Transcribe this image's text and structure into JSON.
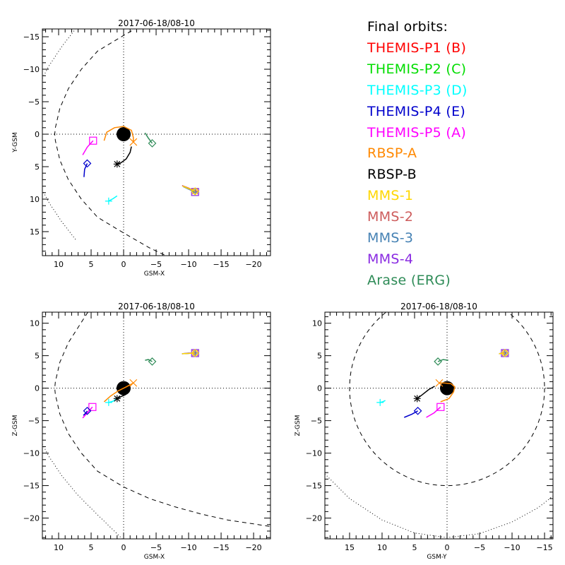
{
  "legend": {
    "title": "Final orbits:",
    "entries": [
      {
        "label": "THEMIS-P1 (B)",
        "color": "#ff0000"
      },
      {
        "label": "THEMIS-P2 (C)",
        "color": "#00dd00"
      },
      {
        "label": "THEMIS-P3 (D)",
        "color": "#00ffff"
      },
      {
        "label": "THEMIS-P4 (E)",
        "color": "#0000cc"
      },
      {
        "label": "THEMIS-P5 (A)",
        "color": "#ff00ff"
      },
      {
        "label": "RBSP-A",
        "color": "#ff8800"
      },
      {
        "label": "RBSP-B",
        "color": "#000000"
      },
      {
        "label": "MMS-1",
        "color": "#ffd700"
      },
      {
        "label": "MMS-2",
        "color": "#cd5c5c"
      },
      {
        "label": "MMS-3",
        "color": "#4682b4"
      },
      {
        "label": "MMS-4",
        "color": "#8a2be2"
      },
      {
        "label": "Arase (ERG)",
        "color": "#2e8b57"
      }
    ]
  },
  "chart_data": [
    {
      "type": "scatter",
      "panel": "top-left",
      "title": "2017-06-18/08-10",
      "xlabel": "GSM-X",
      "ylabel": "Y-GSM",
      "xlim": [
        12.5,
        -22.6
      ],
      "ylim": [
        18.7,
        -16.2
      ],
      "xticks": [
        10,
        5,
        0,
        -5,
        -10,
        -15,
        -20
      ],
      "yticks": [
        -15,
        -10,
        -5,
        0,
        5,
        10,
        15
      ],
      "earth": [
        0,
        0
      ],
      "tracks": [
        {
          "name": "THEMIS-P5 (A)",
          "color": "#ff00ff",
          "marker": "square",
          "path": [
            [
              6.3,
              3.2
            ],
            [
              5.6,
              2.0
            ],
            [
              4.7,
              1.0
            ]
          ]
        },
        {
          "name": "THEMIS-P4 (E)",
          "color": "#0000cc",
          "marker": "diamond",
          "path": [
            [
              6.1,
              6.6
            ],
            [
              6.0,
              5.4
            ],
            [
              5.6,
              4.5
            ]
          ]
        },
        {
          "name": "THEMIS-P3 (D)",
          "color": "#00ffff",
          "marker": "plus",
          "path": [
            [
              1.0,
              9.5
            ],
            [
              1.6,
              9.9
            ],
            [
              2.3,
              10.3
            ]
          ]
        },
        {
          "name": "Arase (ERG)",
          "color": "#2e8b57",
          "marker": "diamond",
          "path": [
            [
              -3.3,
              -0.2
            ],
            [
              -3.8,
              0.6
            ],
            [
              -4.4,
              1.4
            ]
          ]
        },
        {
          "name": "RBSP-A",
          "color": "#ff8800",
          "marker": "x",
          "path": [
            [
              3.0,
              1.0
            ],
            [
              2.6,
              -0.3
            ],
            [
              1.4,
              -1.0
            ],
            [
              0.0,
              -1.2
            ],
            [
              -1.2,
              -0.6
            ],
            [
              -1.5,
              0.5
            ],
            [
              -1.5,
              1.2
            ]
          ]
        },
        {
          "name": "RBSP-B",
          "color": "#000000",
          "marker": "asterisk",
          "path": [
            [
              -1.2,
              1.9
            ],
            [
              -1.0,
              2.8
            ],
            [
              -0.4,
              3.8
            ],
            [
              0.4,
              4.4
            ],
            [
              1.0,
              4.6
            ]
          ]
        },
        {
          "name": "MMS-4",
          "color": "#8a2be2",
          "marker": "square",
          "path": [
            [
              -9.1,
              8.0
            ],
            [
              -9.9,
              8.4
            ],
            [
              -11.0,
              8.9
            ]
          ]
        },
        {
          "name": "MMS-2",
          "color": "#cd5c5c",
          "marker": "asterisk",
          "path": [
            [
              -9.0,
              7.9
            ],
            [
              -10.0,
              8.3
            ],
            [
              -11.0,
              8.8
            ]
          ]
        },
        {
          "name": "MMS-3",
          "color": "#4682b4",
          "marker": "plus",
          "path": [
            [
              -9.2,
              8.1
            ],
            [
              -11.0,
              8.9
            ]
          ]
        },
        {
          "name": "MMS-1",
          "color": "#ffd700",
          "marker": "diamond",
          "path": [
            [
              -9.1,
              8.0
            ],
            [
              -11.0,
              8.8
            ]
          ]
        }
      ],
      "boundaries": {
        "magnetopause_dashed": [
          [
            -6.5,
            -18.7
          ],
          [
            -4,
            -17.5
          ],
          [
            0,
            -15.2
          ],
          [
            4,
            -12.8
          ],
          [
            6.5,
            -10
          ],
          [
            8.5,
            -7
          ],
          [
            9.8,
            -4
          ],
          [
            10.5,
            -1
          ],
          [
            10.6,
            0
          ],
          [
            10.5,
            1
          ],
          [
            9.8,
            4
          ],
          [
            8.5,
            7
          ],
          [
            6.5,
            10
          ],
          [
            4,
            12.8
          ],
          [
            0,
            15.2
          ],
          [
            -4,
            17.5
          ],
          [
            -6.5,
            18.7
          ]
        ],
        "bow_shock_dotted": [
          [
            12.5,
            -8.6
          ],
          [
            11.5,
            -10.5
          ],
          [
            9.5,
            -13.5
          ],
          [
            7.4,
            -16.2
          ],
          [
            7.4,
            16.2
          ],
          [
            9.5,
            13.5
          ],
          [
            11.5,
            10.5
          ],
          [
            12.5,
            8.6
          ]
        ]
      }
    },
    {
      "type": "scatter",
      "panel": "bottom-left",
      "title": "2017-06-18/08-10",
      "xlabel": "GSM-X",
      "ylabel": "Z-GSM",
      "xlim": [
        12.5,
        -22.6
      ],
      "ylim": [
        -23.2,
        11.7
      ],
      "xticks": [
        10,
        5,
        0,
        -5,
        -10,
        -15,
        -20
      ],
      "yticks": [
        10,
        5,
        0,
        -5,
        -10,
        -15,
        -20
      ],
      "earth": [
        0,
        0
      ],
      "tracks": [
        {
          "name": "THEMIS-P5 (A)",
          "color": "#ff00ff",
          "marker": "square",
          "path": [
            [
              6.3,
              -4.6
            ],
            [
              5.6,
              -3.8
            ],
            [
              4.8,
              -2.9
            ]
          ]
        },
        {
          "name": "THEMIS-P4 (E)",
          "color": "#0000cc",
          "marker": "diamond",
          "path": [
            [
              6.2,
              -4.2
            ],
            [
              5.8,
              -3.8
            ],
            [
              5.6,
              -3.5
            ]
          ]
        },
        {
          "name": "THEMIS-P3 (D)",
          "color": "#00ffff",
          "marker": "plus",
          "path": [
            [
              1.0,
              -1.6
            ],
            [
              1.6,
              -2.0
            ],
            [
              2.3,
              -2.2
            ]
          ]
        },
        {
          "name": "Arase (ERG)",
          "color": "#2e8b57",
          "marker": "diamond",
          "path": [
            [
              -3.3,
              4.3
            ],
            [
              -3.8,
              4.4
            ],
            [
              -4.4,
              4.1
            ]
          ]
        },
        {
          "name": "RBSP-A",
          "color": "#ff8800",
          "marker": "x",
          "path": [
            [
              3.0,
              -2.1
            ],
            [
              2.0,
              -1.2
            ],
            [
              0.8,
              -0.4
            ],
            [
              -0.4,
              0.2
            ],
            [
              -1.5,
              0.8
            ]
          ]
        },
        {
          "name": "RBSP-B",
          "color": "#000000",
          "marker": "asterisk",
          "path": [
            [
              -0.3,
              -1.0
            ],
            [
              0.4,
              -1.3
            ],
            [
              1.0,
              -1.6
            ]
          ]
        },
        {
          "name": "MMS-4",
          "color": "#8a2be2",
          "marker": "square",
          "path": [
            [
              -9.0,
              5.3
            ],
            [
              -10.0,
              5.4
            ],
            [
              -11.0,
              5.4
            ]
          ]
        },
        {
          "name": "MMS-2",
          "color": "#cd5c5c",
          "marker": "asterisk",
          "path": [
            [
              -9.0,
              5.3
            ],
            [
              -11.0,
              5.4
            ]
          ]
        },
        {
          "name": "MMS-3",
          "color": "#4682b4",
          "marker": "plus",
          "path": [
            [
              -9.0,
              5.3
            ],
            [
              -11.0,
              5.4
            ]
          ]
        },
        {
          "name": "MMS-1",
          "color": "#ffd700",
          "marker": "diamond",
          "path": [
            [
              -9.0,
              5.3
            ],
            [
              -11.0,
              5.4
            ]
          ]
        }
      ],
      "boundaries": {
        "magnetopause_dashed": [
          [
            5.5,
            11.7
          ],
          [
            8.5,
            7
          ],
          [
            9.8,
            4
          ],
          [
            10.5,
            1
          ],
          [
            10.6,
            0
          ],
          [
            10.5,
            -1
          ],
          [
            9.8,
            -4
          ],
          [
            8.5,
            -7
          ],
          [
            6.5,
            -10
          ],
          [
            4,
            -12.8
          ],
          [
            0,
            -15.2
          ],
          [
            -4,
            -17.0
          ],
          [
            -8,
            -18.3
          ],
          [
            -12,
            -19.4
          ],
          [
            -16,
            -20.3
          ],
          [
            -20,
            -20.9
          ],
          [
            -22.6,
            -21.3
          ]
        ],
        "bow_shock_dotted": [
          [
            12.5,
            11.4
          ],
          [
            12.1,
            11.7
          ],
          [
            12.5,
            -8.6
          ],
          [
            11.5,
            -10.5
          ],
          [
            9.5,
            -13.5
          ],
          [
            7,
            -16.5
          ],
          [
            4,
            -19.5
          ],
          [
            0.2,
            -23.2
          ]
        ]
      }
    },
    {
      "type": "scatter",
      "panel": "bottom-right",
      "title": "2017-06-18/08-10",
      "xlabel": "GSM-Y",
      "ylabel": "Z-GSM",
      "xlim": [
        18.8,
        -16.3
      ],
      "ylim": [
        -23.2,
        11.7
      ],
      "xticks": [
        15,
        10,
        5,
        0,
        -5,
        -10,
        -15
      ],
      "yticks": [
        10,
        5,
        0,
        -5,
        -10,
        -15,
        -20
      ],
      "earth": [
        0,
        0
      ],
      "tracks": [
        {
          "name": "THEMIS-P5 (A)",
          "color": "#ff00ff",
          "marker": "square",
          "path": [
            [
              3.2,
              -4.5
            ],
            [
              2.0,
              -3.8
            ],
            [
              1.0,
              -2.9
            ]
          ]
        },
        {
          "name": "THEMIS-P4 (E)",
          "color": "#0000cc",
          "marker": "diamond",
          "path": [
            [
              6.6,
              -4.5
            ],
            [
              5.4,
              -4.0
            ],
            [
              4.5,
              -3.5
            ]
          ]
        },
        {
          "name": "THEMIS-P3 (D)",
          "color": "#00ffff",
          "marker": "plus",
          "path": [
            [
              9.5,
              -1.9
            ],
            [
              9.9,
              -2.1
            ],
            [
              10.3,
              -2.2
            ]
          ]
        },
        {
          "name": "Arase (ERG)",
          "color": "#2e8b57",
          "marker": "diamond",
          "path": [
            [
              -0.2,
              4.3
            ],
            [
              0.6,
              4.4
            ],
            [
              1.4,
              4.1
            ]
          ]
        },
        {
          "name": "RBSP-A",
          "color": "#ff8800",
          "marker": "x",
          "path": [
            [
              1.0,
              -2.1
            ],
            [
              -0.3,
              -1.6
            ],
            [
              -1.0,
              -0.6
            ],
            [
              -1.2,
              0.2
            ],
            [
              -0.6,
              0.7
            ],
            [
              0.5,
              0.8
            ],
            [
              1.2,
              0.8
            ]
          ]
        },
        {
          "name": "RBSP-B",
          "color": "#000000",
          "marker": "asterisk",
          "path": [
            [
              1.9,
              0.3
            ],
            [
              2.8,
              -0.2
            ],
            [
              3.8,
              -1.0
            ],
            [
              4.6,
              -1.6
            ]
          ]
        },
        {
          "name": "MMS-4",
          "color": "#8a2be2",
          "marker": "square",
          "path": [
            [
              -8.0,
              5.3
            ],
            [
              -8.4,
              5.4
            ],
            [
              -8.9,
              5.4
            ]
          ]
        },
        {
          "name": "MMS-2",
          "color": "#cd5c5c",
          "marker": "asterisk",
          "path": [
            [
              -8.0,
              5.3
            ],
            [
              -8.9,
              5.4
            ]
          ]
        },
        {
          "name": "MMS-3",
          "color": "#4682b4",
          "marker": "plus",
          "path": [
            [
              -8.0,
              5.3
            ],
            [
              -8.9,
              5.4
            ]
          ]
        },
        {
          "name": "MMS-1",
          "color": "#ffd700",
          "marker": "diamond",
          "path": [
            [
              -8.0,
              5.3
            ],
            [
              -8.9,
              5.4
            ]
          ]
        }
      ],
      "boundaries": {
        "magnetopause_dashed": "circle_r15",
        "bow_shock_dotted": [
          [
            18.8,
            -13.2
          ],
          [
            15,
            -17.0
          ],
          [
            10,
            -20.3
          ],
          [
            5,
            -22.3
          ],
          [
            0,
            -23.0
          ],
          [
            -5,
            -22.4
          ],
          [
            -10,
            -20.6
          ],
          [
            -14,
            -18.4
          ],
          [
            -16.3,
            -16.6
          ]
        ]
      }
    }
  ]
}
